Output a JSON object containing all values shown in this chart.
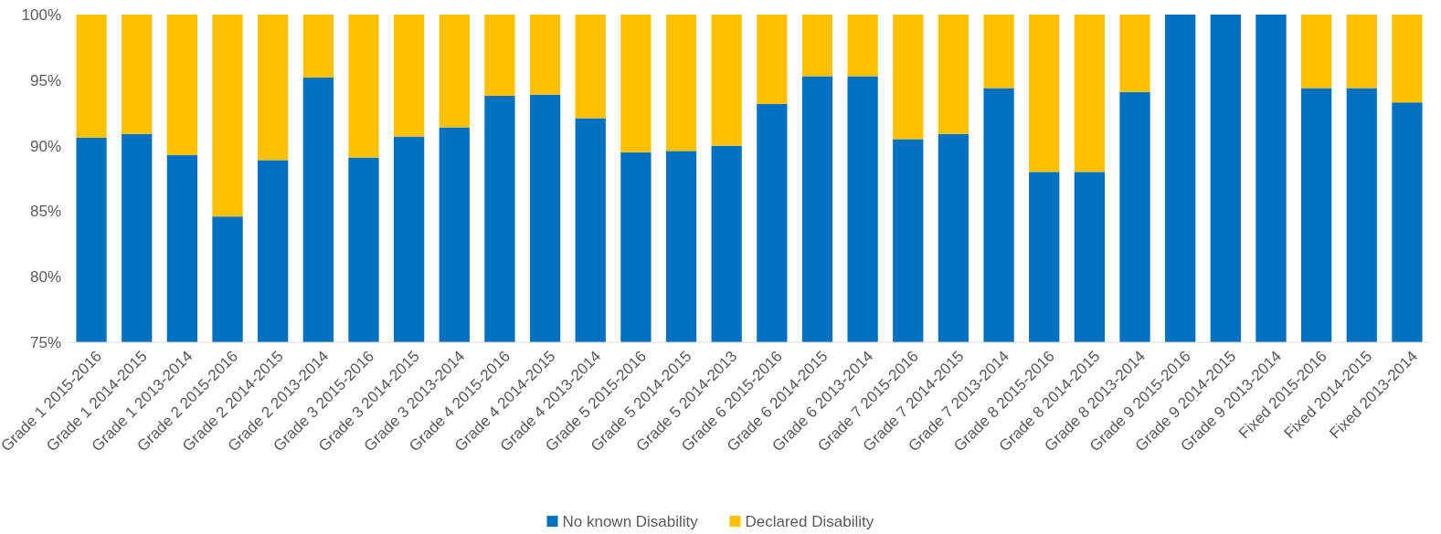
{
  "chart_data": {
    "type": "bar",
    "stacked": true,
    "categories": [
      "Grade 1 2015-2016",
      "Grade 1 2014-2015",
      "Grade 1 2013-2014",
      "Grade 2 2015-2016",
      "Grade 2 2014-2015",
      "Grade 2 2013-2014",
      "Grade 3 2015-2016",
      "Grade 3 2014-2015",
      "Grade 3 2013-2014",
      "Grade 4 2015-2016",
      "Grade 4 2014-2015",
      "Grade 4 2013-2014",
      "Grade 5 2015-2016",
      "Grade 5 2014-2015",
      "Grade 5 2014-2013",
      "Grade 6 2015-2016",
      "Grade 6 2014-2015",
      "Grade 6 2013-2014",
      "Grade 7 2015-2016",
      "Grade 7 2014-2015",
      "Grade 7 2013-2014",
      "Grade 8 2015-2016",
      "Grade 8 2014-2015",
      "Grade 8 2013-2014",
      "Grade 9 2015-2016",
      "Grade 9 2014-2015",
      "Grade 9 2013-2014",
      "Fixed 2015-2016",
      "Fixed 2014-2015",
      "Fixed 2013-2014"
    ],
    "series": [
      {
        "name": "No known Disability",
        "color": "#0070c0",
        "values": [
          90.6,
          90.9,
          89.3,
          84.6,
          88.9,
          95.2,
          89.1,
          90.7,
          91.4,
          93.8,
          93.9,
          92.1,
          89.5,
          89.6,
          90.0,
          93.2,
          95.3,
          95.3,
          90.5,
          90.9,
          94.4,
          88.0,
          88.0,
          94.1,
          100,
          100,
          100,
          94.4,
          94.4,
          93.3
        ]
      },
      {
        "name": "Declared Disability",
        "color": "#ffc000",
        "base": [
          90.6,
          90.9,
          89.3,
          84.6,
          88.9,
          95.2,
          89.1,
          90.7,
          91.4,
          93.8,
          93.9,
          92.1,
          89.5,
          89.6,
          90.0,
          93.2,
          95.3,
          95.3,
          90.5,
          90.9,
          94.4,
          88.0,
          88.0,
          94.1,
          null,
          null,
          null,
          94.4,
          94.4,
          93.3
        ],
        "values": [
          9.4,
          9.1,
          10.7,
          15.4,
          11.1,
          4.8,
          10.9,
          9.3,
          8.6,
          6.2,
          6.1,
          7.9,
          10.5,
          10.4,
          10.0,
          6.8,
          4.7,
          4.7,
          9.5,
          9.1,
          5.6,
          12.0,
          12.0,
          5.9,
          null,
          null,
          null,
          5.6,
          5.6,
          6.7
        ]
      }
    ],
    "ylim": [
      75,
      100
    ],
    "yticks": [
      {
        "value": 75,
        "label": "75%"
      },
      {
        "value": 80,
        "label": "80%"
      },
      {
        "value": 85,
        "label": "85%"
      },
      {
        "value": 90,
        "label": "90%"
      },
      {
        "value": 95,
        "label": "95%"
      },
      {
        "value": 100,
        "label": "100%"
      }
    ],
    "legend": "bottom"
  }
}
